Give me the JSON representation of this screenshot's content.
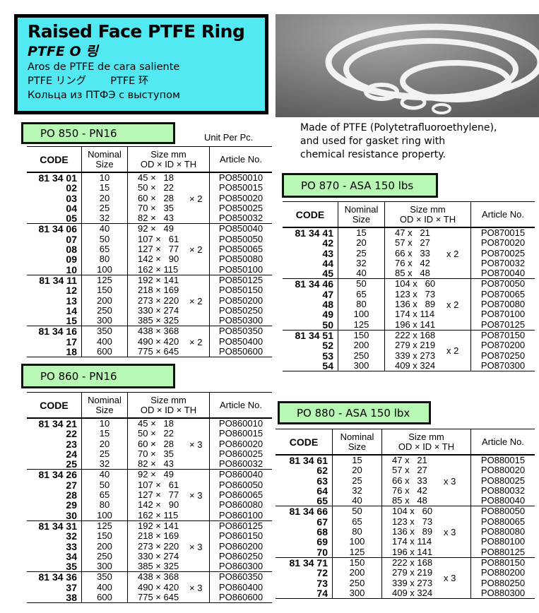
{
  "title": {
    "main": "Raised Face PTFE Ring",
    "korean": "PTFE O 링",
    "spanish": "Aros de PTFE de cara saliente",
    "japanese": "PTFE リング",
    "chinese": "PTFE 环",
    "russian": "Кольца из ПТФЭ с выступом"
  },
  "description": [
    "Made of PTFE (Polytetrafluoroethylene),",
    "and used for gasket ring with",
    "chemical resistance property."
  ],
  "unit_note": "Unit Per Pc.",
  "headers": {
    "code": "CODE",
    "nominal": [
      "Nominal",
      "Size"
    ],
    "size": [
      "Size mm",
      "OD × ID × TH"
    ],
    "article": "Article No."
  },
  "tables": [
    {
      "label": "PO 850 - PN16",
      "groups": [
        {
          "thickness": "× 2",
          "rows": [
            [
              "81 34 01",
              "10",
              "45 ×   18",
              "PO850010"
            ],
            [
              "02",
              "15",
              "50 ×   22",
              "PO850015"
            ],
            [
              "03",
              "20",
              "60 ×   28",
              "PO850020"
            ],
            [
              "04",
              "25",
              "70 ×   35",
              "PO850025"
            ],
            [
              "05",
              "32",
              "82 ×   43",
              "PO850032"
            ]
          ]
        },
        {
          "thickness": "× 2",
          "rows": [
            [
              "81 34 06",
              "40",
              "92 ×   49",
              "PO850040"
            ],
            [
              "07",
              "50",
              "107 ×   61",
              "PO850050"
            ],
            [
              "08",
              "65",
              "127 ×   77",
              "PO850065"
            ],
            [
              "09",
              "80",
              "142 ×   90",
              "PO850080"
            ],
            [
              "10",
              "100",
              "162 × 115",
              "PO850100"
            ]
          ]
        },
        {
          "thickness": "× 2",
          "rows": [
            [
              "81 34 11",
              "125",
              "192 × 141",
              "PO850125"
            ],
            [
              "12",
              "150",
              "218 × 169",
              "PO850150"
            ],
            [
              "13",
              "200",
              "273 × 220",
              "PO850200"
            ],
            [
              "14",
              "250",
              "330 × 274",
              "PO850250"
            ],
            [
              "15",
              "300",
              "385 × 325",
              "PO850300"
            ]
          ]
        },
        {
          "thickness": "× 2",
          "rows": [
            [
              "81 34 16",
              "350",
              "438 × 368",
              "PO850350"
            ],
            [
              "17",
              "400",
              "490 × 420",
              "PO850400"
            ],
            [
              "18",
              "600",
              "775 × 645",
              "PO850600"
            ]
          ]
        }
      ]
    },
    {
      "label": "PO 860 - PN16",
      "groups": [
        {
          "thickness": "× 3",
          "rows": [
            [
              "81 34 21",
              "10",
              "45 ×   18",
              "PO860010"
            ],
            [
              "22",
              "15",
              "50 ×   22",
              "PO860015"
            ],
            [
              "23",
              "20",
              "60 ×   28",
              "PO860020"
            ],
            [
              "24",
              "25",
              "70 ×   35",
              "PO860025"
            ],
            [
              "25",
              "32",
              "82 ×   43",
              "PO860032"
            ]
          ]
        },
        {
          "thickness": "× 3",
          "rows": [
            [
              "81 34 26",
              "40",
              "92 ×   49",
              "PO860040"
            ],
            [
              "27",
              "50",
              "107 ×   61",
              "PO860050"
            ],
            [
              "28",
              "65",
              "127 ×   77",
              "PO860065"
            ],
            [
              "29",
              "80",
              "142 ×   90",
              "PO860080"
            ],
            [
              "30",
              "100",
              "162 × 115",
              "PO860100"
            ]
          ]
        },
        {
          "thickness": "× 3",
          "rows": [
            [
              "81 34 31",
              "125",
              "192 × 141",
              "PO860125"
            ],
            [
              "32",
              "150",
              "218 × 169",
              "PO860150"
            ],
            [
              "33",
              "200",
              "273 × 220",
              "PO860200"
            ],
            [
              "34",
              "250",
              "330 × 274",
              "PO860250"
            ],
            [
              "35",
              "300",
              "385 × 325",
              "PO860300"
            ]
          ]
        },
        {
          "thickness": "× 3",
          "rows": [
            [
              "81 34 36",
              "350",
              "438 × 368",
              "PO860350"
            ],
            [
              "37",
              "400",
              "490 × 420",
              "PO860400"
            ],
            [
              "38",
              "600",
              "775 × 645",
              "PO860600"
            ]
          ]
        }
      ]
    },
    {
      "label": "PO 870 - ASA 150 lbs",
      "groups": [
        {
          "thickness": "x 2",
          "rows": [
            [
              "81 34 41",
              "15",
              "47 x   21",
              "PO870015"
            ],
            [
              "42",
              "20",
              "57 x   27",
              "PO870020"
            ],
            [
              "43",
              "25",
              "66 x   33",
              "PO870025"
            ],
            [
              "44",
              "32",
              "76 x   42",
              "PO870032"
            ],
            [
              "45",
              "40",
              "85 x   48",
              "PO870040"
            ]
          ]
        },
        {
          "thickness": "x 2",
          "rows": [
            [
              "81 34 46",
              "50",
              "104 x   60",
              "PO870050"
            ],
            [
              "47",
              "65",
              "123 x   73",
              "PO870065"
            ],
            [
              "48",
              "80",
              "136 x   89",
              "PO870080"
            ],
            [
              "49",
              "100",
              "174 x 114",
              "PO870100"
            ],
            [
              "50",
              "125",
              "196 x 141",
              "PO870125"
            ]
          ]
        },
        {
          "thickness": "x 2",
          "rows": [
            [
              "81 34 51",
              "150",
              "222 x 168",
              "PO870150"
            ],
            [
              "52",
              "200",
              "279 x 219",
              "PO870200"
            ],
            [
              "53",
              "250",
              "339 x 273",
              "PO870250"
            ],
            [
              "54",
              "300",
              "409 x 324",
              "PO870300"
            ]
          ]
        }
      ]
    },
    {
      "label": "PO 880 - ASA 150 lbx",
      "groups": [
        {
          "thickness": "x 3",
          "rows": [
            [
              "81 34 61",
              "15",
              "47 x   21",
              "PO880015"
            ],
            [
              "62",
              "20",
              "57 x   27",
              "PO880020"
            ],
            [
              "63",
              "25",
              "66 x   33",
              "PO880025"
            ],
            [
              "64",
              "32",
              "76 x   42",
              "PO880032"
            ],
            [
              "65",
              "40",
              "85 x   48",
              "PO880040"
            ]
          ]
        },
        {
          "thickness": "x 3",
          "rows": [
            [
              "81 34 66",
              "50",
              "104 x   60",
              "PO880050"
            ],
            [
              "67",
              "65",
              "123 x   73",
              "PO880065"
            ],
            [
              "68",
              "80",
              "136 x   89",
              "PO880080"
            ],
            [
              "69",
              "100",
              "174 x 114",
              "PO880100"
            ],
            [
              "70",
              "125",
              "196 x 141",
              "PO880125"
            ]
          ]
        },
        {
          "thickness": "x 3",
          "rows": [
            [
              "81 34 71",
              "150",
              "222 x 168",
              "PO880150"
            ],
            [
              "72",
              "200",
              "279 x 219",
              "PO880200"
            ],
            [
              "73",
              "250",
              "339 x 273",
              "PO880250"
            ],
            [
              "74",
              "300",
              "409 x 324",
              "PO880300"
            ]
          ]
        }
      ]
    }
  ]
}
